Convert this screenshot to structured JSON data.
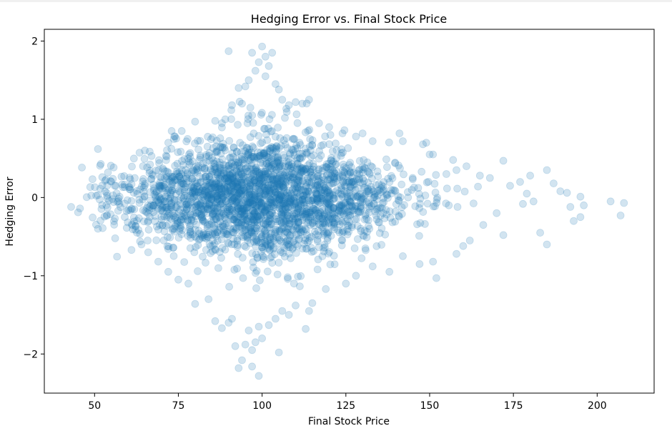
{
  "chart_data": {
    "type": "scatter",
    "title": "Hedging Error vs. Final Stock Price",
    "xlabel": "Final Stock Price",
    "ylabel": "Hedging Error",
    "xlim": [
      35,
      217
    ],
    "ylim": [
      -2.5,
      2.15
    ],
    "xticks": [
      50,
      75,
      100,
      125,
      150,
      175,
      200
    ],
    "yticks": [
      -2,
      -1,
      0,
      1,
      2
    ],
    "xtick_labels": [
      "50",
      "75",
      "100",
      "125",
      "150",
      "175",
      "200"
    ],
    "ytick_labels": [
      "−2",
      "−1",
      "0",
      "1",
      "2"
    ],
    "grid": false,
    "legend": "none",
    "marker_color": "#1f77b4",
    "marker_alpha": 0.2,
    "cloud": {
      "count": 2600,
      "center_price": 100,
      "price_sd": 20,
      "error_sd_at_center": 0.42,
      "error_sd_at_tails": 0.18
    },
    "points": [
      [
        43,
        -0.12
      ],
      [
        51,
        0.62
      ],
      [
        51,
        -0.4
      ],
      [
        51,
        0.03
      ],
      [
        54,
        0.32
      ],
      [
        56,
        0.15
      ],
      [
        59,
        -0.25
      ],
      [
        61,
        -0.67
      ],
      [
        62,
        0.25
      ],
      [
        65,
        0.6
      ],
      [
        66,
        -0.3
      ],
      [
        67,
        0.53
      ],
      [
        90,
        1.87
      ],
      [
        95,
        1.42
      ],
      [
        97,
        1.85
      ],
      [
        99,
        1.73
      ],
      [
        100,
        1.93
      ],
      [
        101,
        1.8
      ],
      [
        103,
        1.85
      ],
      [
        102,
        1.68
      ],
      [
        98,
        1.62
      ],
      [
        101,
        1.55
      ],
      [
        96,
        1.5
      ],
      [
        104,
        1.45
      ],
      [
        93,
        1.4
      ],
      [
        105,
        1.38
      ],
      [
        106,
        1.25
      ],
      [
        108,
        1.18
      ],
      [
        110,
        1.22
      ],
      [
        112,
        1.2
      ],
      [
        114,
        1.25
      ],
      [
        94,
        1.2
      ],
      [
        91,
        1.18
      ],
      [
        89,
        1.0
      ],
      [
        86,
        0.98
      ],
      [
        88,
        0.95
      ],
      [
        80,
        0.97
      ],
      [
        76,
        0.85
      ],
      [
        74,
        0.78
      ],
      [
        72,
        0.7
      ],
      [
        73,
        0.85
      ],
      [
        117,
        0.95
      ],
      [
        120,
        0.9
      ],
      [
        124,
        0.82
      ],
      [
        128,
        0.78
      ],
      [
        130,
        0.82
      ],
      [
        133,
        0.72
      ],
      [
        141,
        0.82
      ],
      [
        142,
        0.72
      ],
      [
        148,
        0.68
      ],
      [
        149,
        0.7
      ],
      [
        150,
        0.55
      ],
      [
        151,
        0.55
      ],
      [
        155,
        0.3
      ],
      [
        157,
        0.48
      ],
      [
        158,
        0.35
      ],
      [
        161,
        0.4
      ],
      [
        165,
        0.28
      ],
      [
        168,
        0.25
      ],
      [
        172,
        0.47
      ],
      [
        174,
        0.15
      ],
      [
        177,
        0.2
      ],
      [
        179,
        0.05
      ],
      [
        180,
        0.28
      ],
      [
        181,
        -0.05
      ],
      [
        183,
        -0.45
      ],
      [
        185,
        0.35
      ],
      [
        185,
        -0.6
      ],
      [
        187,
        0.18
      ],
      [
        189,
        0.08
      ],
      [
        191,
        0.06
      ],
      [
        192,
        -0.12
      ],
      [
        193,
        -0.3
      ],
      [
        195,
        -0.25
      ],
      [
        196,
        -0.1
      ],
      [
        195,
        0.01
      ],
      [
        204,
        -0.05
      ],
      [
        207,
        -0.23
      ],
      [
        208,
        -0.07
      ],
      [
        172,
        -0.48
      ],
      [
        170,
        -0.2
      ],
      [
        166,
        -0.35
      ],
      [
        162,
        -0.55
      ],
      [
        160,
        -0.62
      ],
      [
        158,
        -0.72
      ],
      [
        152,
        -1.03
      ],
      [
        151,
        -0.82
      ],
      [
        147,
        -0.85
      ],
      [
        142,
        -0.75
      ],
      [
        138,
        -0.95
      ],
      [
        133,
        -0.88
      ],
      [
        128,
        -1.0
      ],
      [
        125,
        -1.1
      ],
      [
        119,
        -1.17
      ],
      [
        115,
        -1.35
      ],
      [
        114,
        -1.45
      ],
      [
        113,
        -1.68
      ],
      [
        110,
        -1.38
      ],
      [
        108,
        -1.5
      ],
      [
        106,
        -1.45
      ],
      [
        105,
        -1.98
      ],
      [
        104,
        -1.55
      ],
      [
        102,
        -1.63
      ],
      [
        100,
        -1.8
      ],
      [
        99,
        -1.65
      ],
      [
        98,
        -1.85
      ],
      [
        97,
        -1.95
      ],
      [
        96,
        -1.7
      ],
      [
        95,
        -1.88
      ],
      [
        94,
        -2.08
      ],
      [
        93,
        -2.18
      ],
      [
        92,
        -1.9
      ],
      [
        91,
        -1.55
      ],
      [
        90,
        -1.6
      ],
      [
        88,
        -1.67
      ],
      [
        86,
        -1.58
      ],
      [
        84,
        -1.3
      ],
      [
        80,
        -1.36
      ],
      [
        78,
        -1.1
      ],
      [
        75,
        -1.05
      ],
      [
        72,
        -0.95
      ],
      [
        69,
        -0.82
      ],
      [
        66,
        -0.7
      ],
      [
        64,
        -0.6
      ],
      [
        97,
        -2.16
      ],
      [
        99,
        -2.28
      ]
    ]
  }
}
